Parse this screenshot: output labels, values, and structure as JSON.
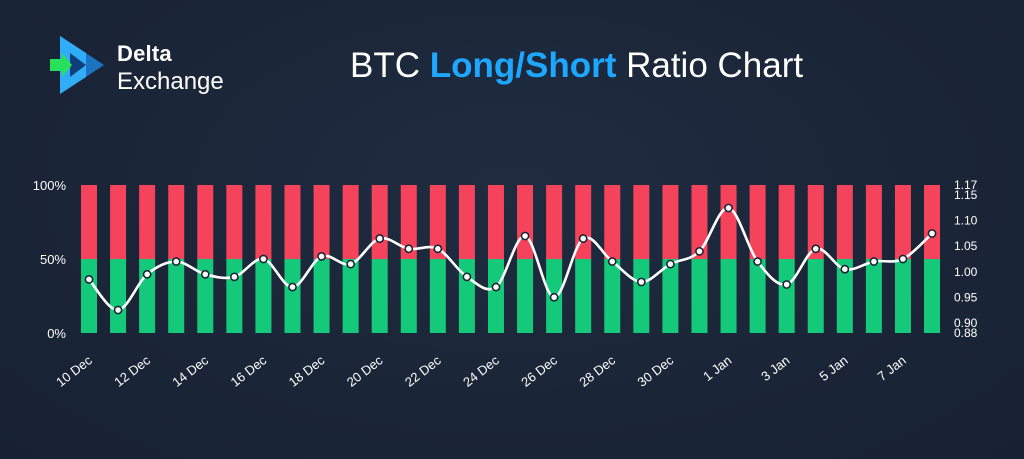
{
  "brand": {
    "name_line1": "Delta",
    "name_line2": "Exchange",
    "colors": {
      "logo_dark": "#1b73c2",
      "logo_light": "#35b6ff",
      "logo_arrow": "#29e05a"
    }
  },
  "header": {
    "title_part1": "BTC ",
    "title_accent": "Long/Short",
    "title_part2": " Ratio Chart"
  },
  "colors": {
    "background": "#1a2537",
    "long": "#14c97a",
    "short": "#f4435a",
    "line": "#ffffff",
    "accent": "#1ea7ff"
  },
  "chart_data": {
    "type": "bar",
    "stacked": true,
    "title": "BTC Long/Short Ratio Chart",
    "x_tick_labels": [
      "10 Dec",
      "12 Dec",
      "14 Dec",
      "16 Dec",
      "18 Dec",
      "20 Dec",
      "22 Dec",
      "24 Dec",
      "26 Dec",
      "28 Dec",
      "30 Dec",
      "1 Jan",
      "3 Jan",
      "5 Jan",
      "7 Jan"
    ],
    "y_left": {
      "ticks": [
        "0%",
        "50%",
        "100%"
      ],
      "ylim": [
        0,
        100
      ]
    },
    "y_right": {
      "ticks": [
        "0.88",
        "0.90",
        "0.95",
        "1.00",
        "1.05",
        "1.10",
        "1.15",
        "1.17"
      ],
      "ylim": [
        0.88,
        1.17
      ]
    },
    "series": [
      {
        "values": [
          50,
          50,
          50,
          50,
          50,
          50,
          50,
          50,
          50,
          50,
          50,
          50,
          50,
          50,
          50,
          50,
          50,
          50,
          50,
          50,
          50,
          50,
          50,
          50,
          50,
          50,
          50,
          50,
          50,
          50
        ]
      },
      {
        "values": [
          50,
          50,
          50,
          50,
          50,
          50,
          50,
          50,
          50,
          50,
          50,
          50,
          50,
          50,
          50,
          50,
          50,
          50,
          50,
          50,
          50,
          50,
          50,
          50,
          50,
          50,
          50,
          50,
          50,
          50
        ]
      },
      {
        "type": "line",
        "axis": "right",
        "values": [
          0.985,
          0.925,
          0.995,
          1.02,
          0.995,
          0.99,
          1.025,
          0.97,
          1.03,
          1.015,
          1.065,
          1.045,
          1.045,
          0.99,
          0.97,
          1.07,
          0.95,
          1.065,
          1.02,
          0.98,
          1.015,
          1.04,
          1.125,
          1.02,
          0.975,
          1.045,
          1.005,
          1.02,
          1.025,
          1.075
        ]
      }
    ],
    "grid": false
  }
}
